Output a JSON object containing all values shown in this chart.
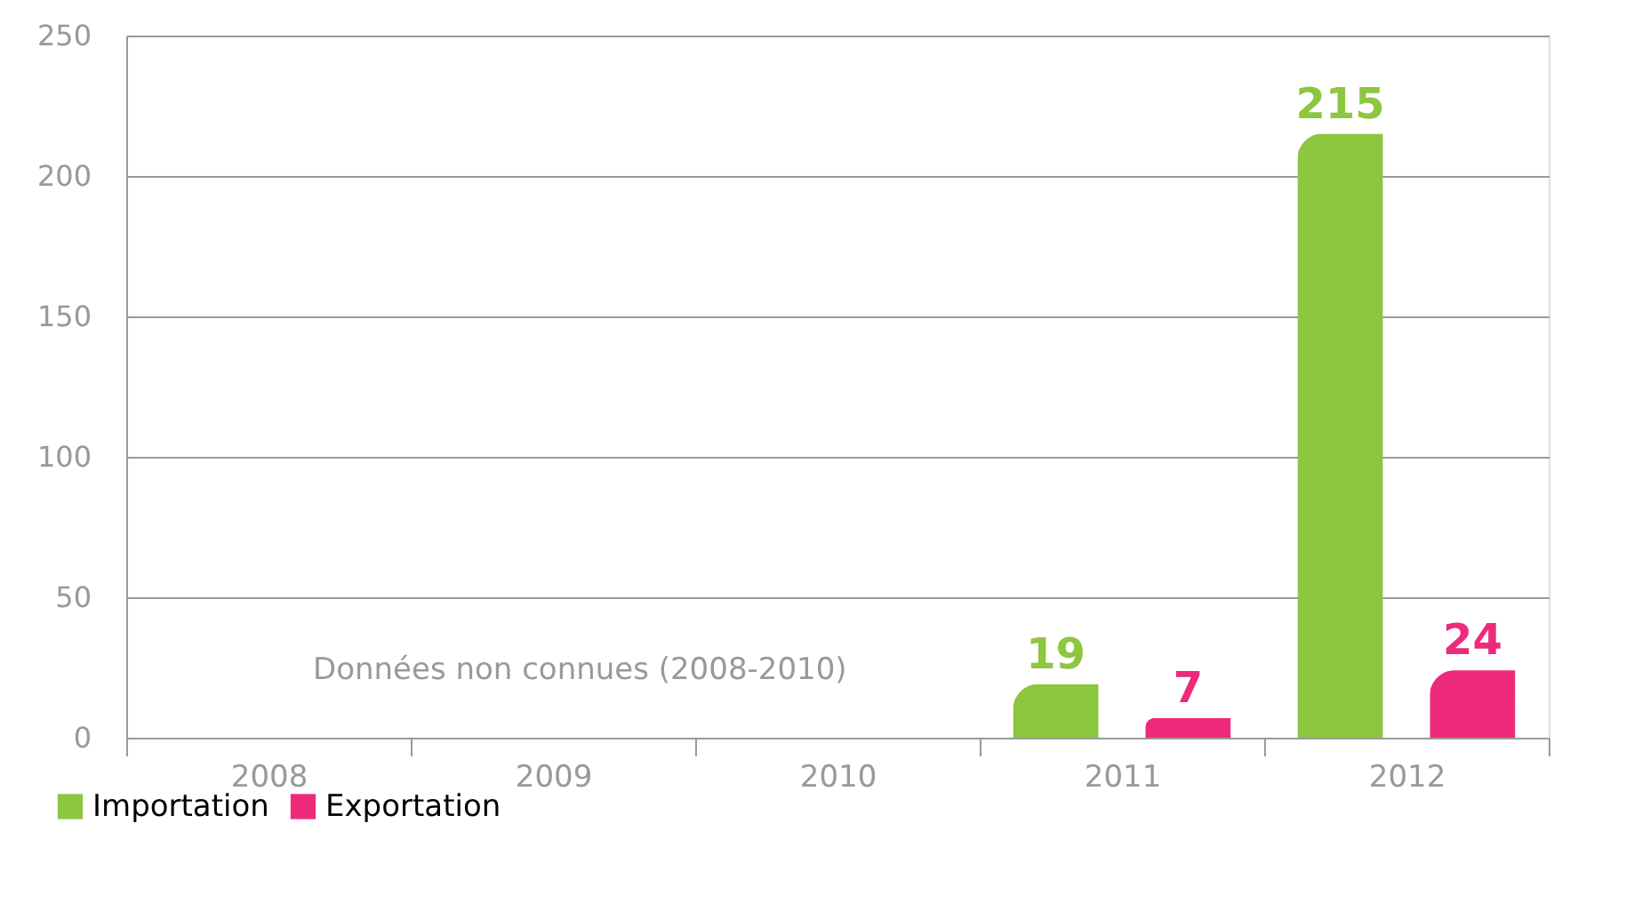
{
  "chart_data": {
    "type": "bar",
    "categories": [
      "2008",
      "2009",
      "2010",
      "2011",
      "2012"
    ],
    "series": [
      {
        "name": "Importation",
        "color": "#8dc63f",
        "values": [
          0,
          0,
          0,
          19,
          215
        ],
        "value_labels": [
          null,
          null,
          null,
          "19",
          "215"
        ]
      },
      {
        "name": "Exportation",
        "color": "#ee2a7b",
        "values": [
          0,
          0,
          0,
          7,
          24
        ],
        "value_labels": [
          null,
          null,
          null,
          "7",
          "24"
        ]
      }
    ],
    "ylim": [
      0,
      250
    ],
    "yticks": [
      0,
      50,
      100,
      150,
      200,
      250
    ],
    "grid": "y",
    "legend": "bottom left",
    "annotations": [
      "Données non connues (2008-2010)"
    ]
  }
}
